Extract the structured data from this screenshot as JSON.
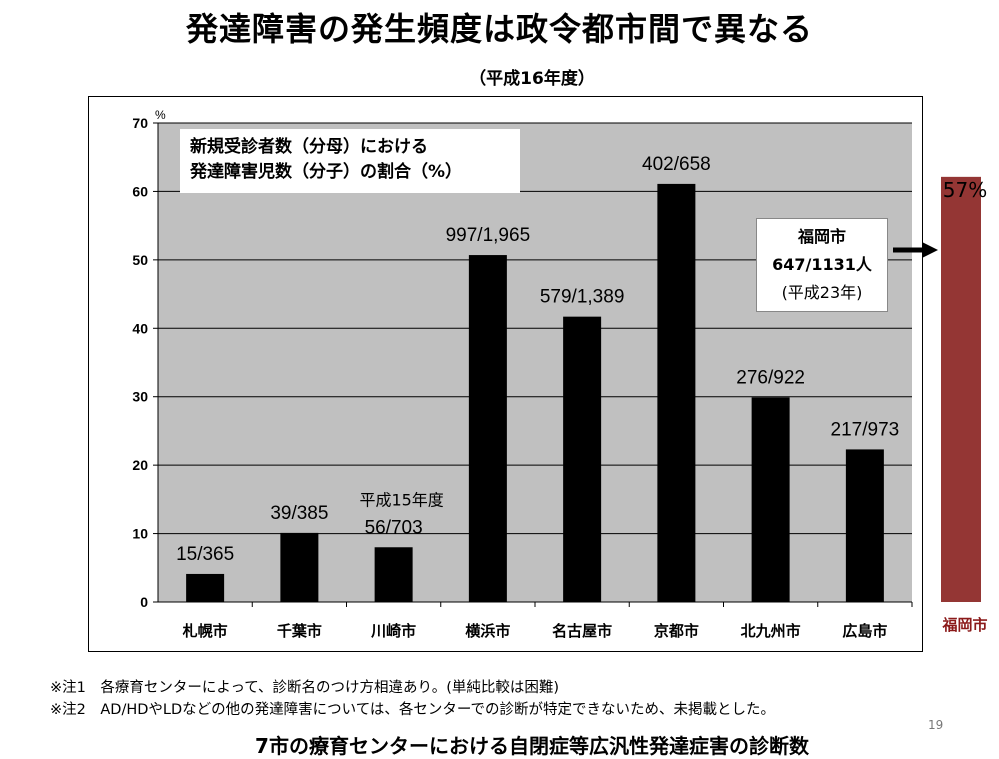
{
  "slide": {
    "title": "発達障害の発生頻度は政令都市間で異なる",
    "subtitle": "（平成16年度）",
    "page_number": "19",
    "footer_title": "7市の療育センターにおける自閉症等広汎性発達症害の診断数"
  },
  "notes": [
    "※注1　各療育センターによって、診断名のつけ方相違あり。(単純比較は困難)",
    "※注2　AD/HDやLDなどの他の発達障害については、各センターでの診断が特定できないため、未掲載とした。"
  ],
  "legend": {
    "line1": "新規受診者数（分母）における",
    "line2": "発達障害児数（分子）の割合（%）"
  },
  "chart_data": {
    "type": "bar",
    "ylabel": "%",
    "ylim": [
      0,
      70
    ],
    "yticks": [
      0,
      10,
      20,
      30,
      40,
      50,
      60,
      70
    ],
    "grid": true,
    "categories": [
      "札幌市",
      "千葉市",
      "川崎市",
      "横浜市",
      "名古屋市",
      "京都市",
      "北九州市",
      "広島市"
    ],
    "values": [
      4.1,
      10.1,
      8.0,
      50.7,
      41.7,
      61.1,
      29.9,
      22.3
    ],
    "data_labels": [
      "15/365",
      "39/385",
      "56/703",
      "997/1,965",
      "579/1,389",
      "402/658",
      "276/922",
      "217/973"
    ],
    "annotation_kawasaki": "平成15年度",
    "bar_color": "#000000",
    "plot_bg": "#c0c0c0"
  },
  "fukuoka": {
    "line1": "福岡市",
    "line2": "647/1131人",
    "line3": "(平成23年)",
    "percent_label": "57%",
    "value": 57,
    "category_label": "福岡市",
    "bar_color": "#943634"
  }
}
